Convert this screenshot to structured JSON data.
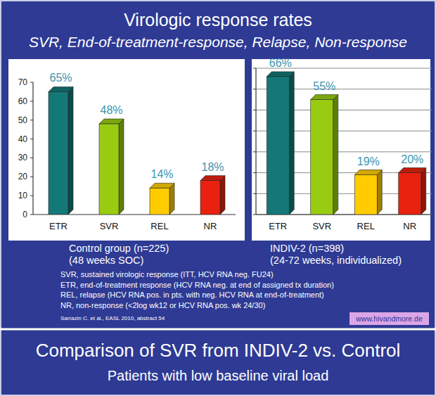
{
  "header": {
    "title": "Virologic response rates",
    "subtitle": "SVR, End-of-treatment-response, Relapse, Non-response"
  },
  "chart_data": [
    {
      "type": "bar",
      "title": "Control group (n=225)",
      "subtitle": "(48 weeks SOC)",
      "categories": [
        "ETR",
        "SVR",
        "REL",
        "NR"
      ],
      "values": [
        65,
        48,
        14,
        18
      ],
      "value_labels": [
        "65%",
        "48%",
        "14%",
        "18%"
      ],
      "colors": [
        "#147878",
        "#99cc11",
        "#ffcc00",
        "#e8220f"
      ],
      "ylim": [
        0,
        70
      ],
      "yticks": [
        0,
        10,
        20,
        30,
        40,
        50,
        60,
        70
      ],
      "grid": false,
      "data_labels": true
    },
    {
      "type": "bar",
      "title": "INDIV-2 (n=398)",
      "subtitle": "(24-72 weeks, individualized)",
      "categories": [
        "ETR",
        "SVR",
        "REL",
        "NR"
      ],
      "values": [
        66,
        55,
        19,
        20
      ],
      "value_labels": [
        "66%",
        "55%",
        "19%",
        "20%"
      ],
      "colors": [
        "#147878",
        "#99cc11",
        "#ffcc00",
        "#e8220f"
      ],
      "ylim": [
        0,
        70
      ],
      "yticks": [
        0,
        10,
        20,
        30,
        40,
        50,
        60,
        70
      ],
      "grid": true,
      "data_labels": true,
      "tick_labels": "x"
    }
  ],
  "notes": [
    "SVR, sustained virologic response (ITT, HCV RNA neg. FU24)",
    "ETR, end-of-treatment response (HCV RNA neg. at end of assigned tx duration)",
    "REL, relapse (HCV RNA pos. in pts. with neg. HCV RNA at end-of-treatment)",
    "NR, non-response (<2log wk12 or HCV RNA pos. wk 24/30)"
  ],
  "source": "Sarrazin C. et al., EASL 2010, abstract 54",
  "website": "www.hivandmore.de",
  "footer": {
    "title": "Comparison of SVR from INDIV-2 vs. Control",
    "subtitle": "Patients with low baseline viral load"
  }
}
